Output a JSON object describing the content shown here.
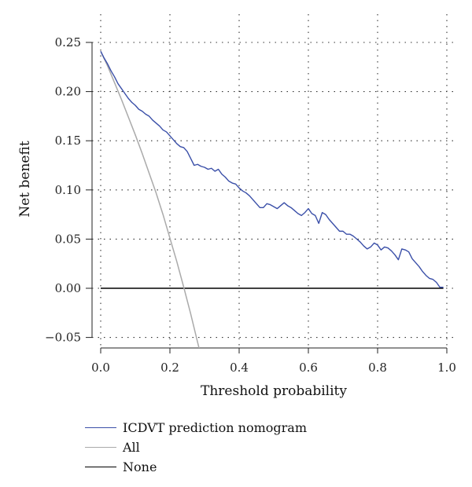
{
  "chart_data": {
    "type": "line",
    "title": "",
    "xlabel": "Threshold probability",
    "ylabel": "Net benefit",
    "xlim": [
      0,
      1
    ],
    "ylim": [
      -0.06,
      0.26
    ],
    "xticks": [
      0.0,
      0.2,
      0.4,
      0.6,
      0.8,
      1.0
    ],
    "xtick_labels": [
      "0.0",
      "0.2",
      "0.4",
      "0.6",
      "0.8",
      "1.0"
    ],
    "yticks": [
      -0.05,
      0.0,
      0.05,
      0.1,
      0.15,
      0.2,
      0.25
    ],
    "ytick_labels": [
      "−0.05",
      "0.00",
      "0.05",
      "0.10",
      "0.15",
      "0.20",
      "0.25"
    ],
    "grid": "dotted",
    "legend_position": "bottom-left",
    "series": [
      {
        "name": "ICDVT prediction nomogram",
        "color": "#3a4fa8",
        "x": [
          0.0,
          0.01,
          0.02,
          0.03,
          0.04,
          0.05,
          0.06,
          0.07,
          0.08,
          0.09,
          0.1,
          0.11,
          0.12,
          0.13,
          0.14,
          0.15,
          0.16,
          0.17,
          0.18,
          0.19,
          0.2,
          0.21,
          0.22,
          0.23,
          0.24,
          0.25,
          0.26,
          0.27,
          0.28,
          0.29,
          0.3,
          0.31,
          0.32,
          0.33,
          0.34,
          0.35,
          0.36,
          0.37,
          0.38,
          0.39,
          0.4,
          0.41,
          0.42,
          0.43,
          0.44,
          0.45,
          0.46,
          0.47,
          0.48,
          0.49,
          0.5,
          0.51,
          0.52,
          0.53,
          0.54,
          0.55,
          0.56,
          0.57,
          0.58,
          0.59,
          0.6,
          0.61,
          0.62,
          0.63,
          0.64,
          0.65,
          0.66,
          0.67,
          0.68,
          0.69,
          0.7,
          0.71,
          0.72,
          0.73,
          0.74,
          0.75,
          0.76,
          0.77,
          0.78,
          0.79,
          0.8,
          0.81,
          0.82,
          0.83,
          0.84,
          0.85,
          0.86,
          0.87,
          0.88,
          0.89,
          0.9,
          0.91,
          0.92,
          0.93,
          0.94,
          0.95,
          0.96,
          0.97,
          0.98,
          0.99
        ],
        "y": [
          0.241,
          0.234,
          0.228,
          0.221,
          0.215,
          0.208,
          0.203,
          0.198,
          0.193,
          0.189,
          0.186,
          0.182,
          0.18,
          0.177,
          0.175,
          0.171,
          0.168,
          0.165,
          0.161,
          0.159,
          0.155,
          0.151,
          0.147,
          0.144,
          0.143,
          0.139,
          0.132,
          0.125,
          0.126,
          0.124,
          0.123,
          0.121,
          0.122,
          0.119,
          0.121,
          0.116,
          0.113,
          0.109,
          0.107,
          0.106,
          0.102,
          0.099,
          0.097,
          0.094,
          0.09,
          0.086,
          0.082,
          0.082,
          0.086,
          0.085,
          0.083,
          0.081,
          0.084,
          0.087,
          0.084,
          0.082,
          0.079,
          0.076,
          0.074,
          0.077,
          0.081,
          0.076,
          0.074,
          0.066,
          0.077,
          0.075,
          0.07,
          0.066,
          0.062,
          0.058,
          0.058,
          0.055,
          0.055,
          0.053,
          0.05,
          0.047,
          0.043,
          0.04,
          0.042,
          0.046,
          0.044,
          0.039,
          0.042,
          0.041,
          0.038,
          0.034,
          0.029,
          0.04,
          0.039,
          0.037,
          0.03,
          0.026,
          0.022,
          0.017,
          0.013,
          0.01,
          0.009,
          0.006,
          0.001,
          0.001
        ]
      },
      {
        "name": "All",
        "color": "#aaaaaa",
        "x": [
          0.0,
          0.02,
          0.04,
          0.06,
          0.08,
          0.1,
          0.12,
          0.14,
          0.16,
          0.18,
          0.2,
          0.22,
          0.24,
          0.26,
          0.28,
          0.285
        ],
        "y": [
          0.241,
          0.226,
          0.209,
          0.192,
          0.174,
          0.156,
          0.137,
          0.117,
          0.097,
          0.075,
          0.051,
          0.027,
          0.001,
          -0.026,
          -0.055,
          -0.062
        ]
      },
      {
        "name": "None",
        "color": "#000000",
        "x": [
          0.0,
          0.99
        ],
        "y": [
          0.0,
          0.0
        ]
      }
    ]
  }
}
